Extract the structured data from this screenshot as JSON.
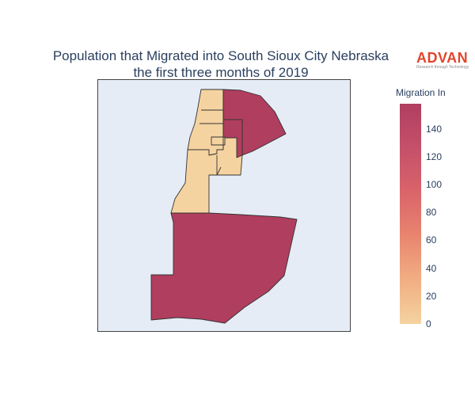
{
  "title": {
    "line1": "Population that Migrated into South Sioux City Nebraska",
    "line2": "the first three months of 2019"
  },
  "logo": {
    "name": "ADVAN",
    "tagline": "Research through Technology"
  },
  "colorbar": {
    "title": "Migration In",
    "ticks": [
      "0",
      "20",
      "40",
      "60",
      "80",
      "100",
      "120",
      "140"
    ],
    "tick_values": [
      0,
      20,
      40,
      60,
      80,
      100,
      120,
      140
    ],
    "range": [
      0,
      158
    ],
    "colorscale": [
      "#f5d3a0",
      "#f1ae82",
      "#e9856f",
      "#d9646a",
      "#c4506a",
      "#b03e5f"
    ]
  },
  "map": {
    "background": "#e5ecf6",
    "border_color": "#444444",
    "high_color": "#b03e5f",
    "low_color": "#f5d3a0"
  }
}
